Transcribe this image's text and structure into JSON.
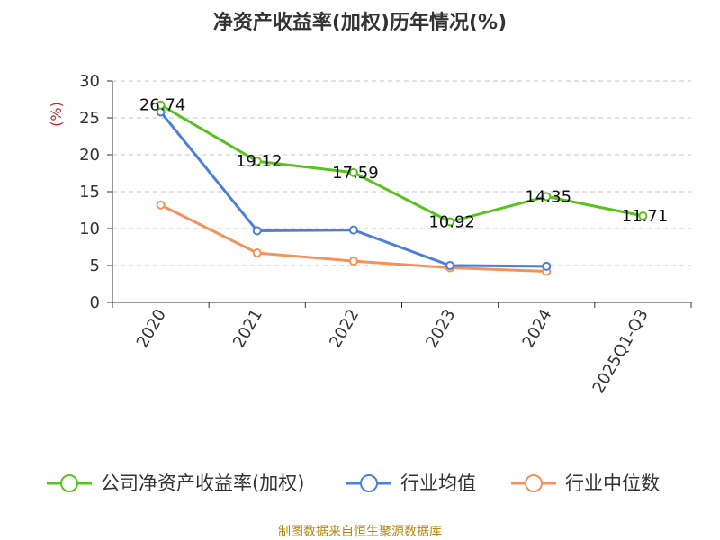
{
  "chart_data": {
    "type": "line",
    "title": "净资产收益率(加权)历年情况(%)",
    "ylabel": "(%)",
    "categories": [
      "2020",
      "2021",
      "2022",
      "2023",
      "2024",
      "2025Q1-Q3"
    ],
    "yticks": [
      "0",
      "5",
      "10",
      "15",
      "20",
      "25",
      "30"
    ],
    "ylim": [
      0,
      30
    ],
    "grid": "horizontal-dashed",
    "legend_position": "bottom",
    "series": [
      {
        "name": "公司净资产收益率(加权)",
        "color": "#5ac21e",
        "values": [
          26.74,
          19.12,
          17.59,
          10.92,
          14.35,
          11.71
        ],
        "labels": [
          "26.74",
          "19.12",
          "17.59",
          "10.92",
          "14.35",
          "11.71"
        ]
      },
      {
        "name": "行业均值",
        "color": "#4a7fdb",
        "values": [
          25.8,
          9.7,
          9.8,
          5.0,
          4.9,
          null
        ]
      },
      {
        "name": "行业中位数",
        "color": "#f5915a",
        "values": [
          13.2,
          6.7,
          5.6,
          4.7,
          4.2,
          null
        ]
      }
    ],
    "source": "制图数据来自恒生聚源数据库"
  }
}
